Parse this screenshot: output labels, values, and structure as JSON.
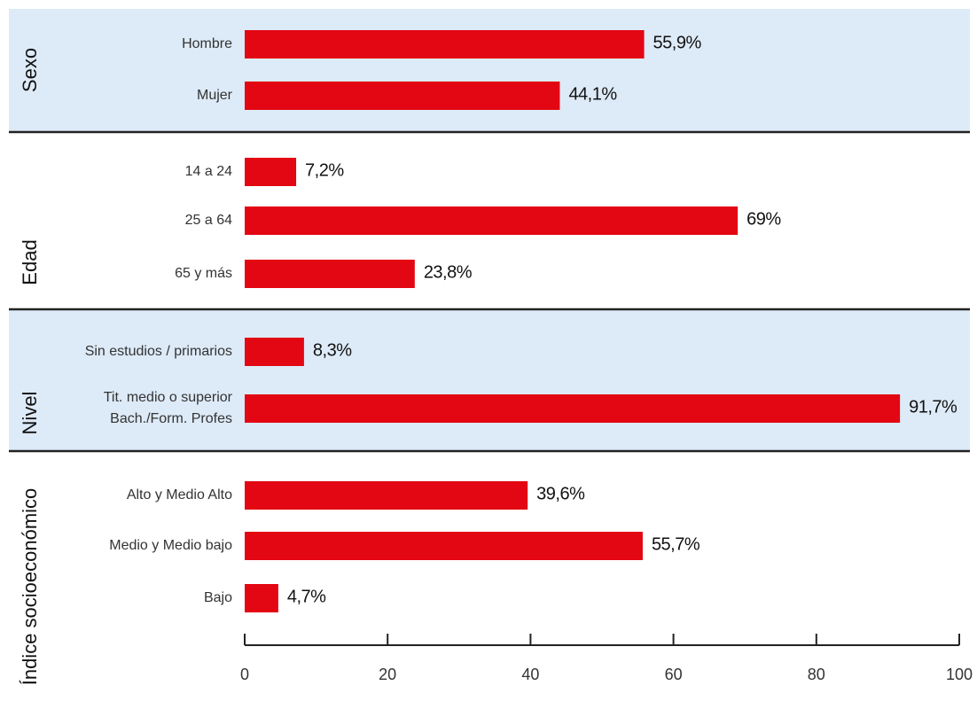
{
  "chart_data": {
    "type": "bar",
    "orientation": "horizontal",
    "xlim": [
      0,
      100
    ],
    "xticks": [
      "0",
      "20",
      "40",
      "60",
      "80",
      "100"
    ],
    "groups": [
      {
        "label": "Sexo",
        "shaded": true,
        "items": [
          {
            "label": [
              "Hombre"
            ],
            "value": 55.9,
            "value_label": "55,9%"
          },
          {
            "label": [
              "Mujer"
            ],
            "value": 44.1,
            "value_label": "44,1%"
          }
        ]
      },
      {
        "label": "Edad",
        "shaded": false,
        "items": [
          {
            "label": [
              "14 a 24"
            ],
            "value": 7.2,
            "value_label": "7,2%"
          },
          {
            "label": [
              "25 a 64"
            ],
            "value": 69,
            "value_label": "69%"
          },
          {
            "label": [
              "65 y más"
            ],
            "value": 23.8,
            "value_label": "23,8%"
          }
        ]
      },
      {
        "label": "Nivel",
        "shaded": true,
        "items": [
          {
            "label": [
              "Sin estudios / primarios"
            ],
            "value": 8.3,
            "value_label": "8,3%"
          },
          {
            "label": [
              "Tit. medio o superior",
              "Bach./Form. Profes"
            ],
            "value": 91.7,
            "value_label": "91,7%"
          }
        ]
      },
      {
        "label": "Índice socioeconómico",
        "shaded": false,
        "items": [
          {
            "label": [
              "Alto y Medio Alto"
            ],
            "value": 39.6,
            "value_label": "39,6%"
          },
          {
            "label": [
              "Medio y Medio bajo"
            ],
            "value": 55.7,
            "value_label": "55,7%"
          },
          {
            "label": [
              "Bajo"
            ],
            "value": 4.7,
            "value_label": "4,7%"
          }
        ]
      }
    ],
    "colors": {
      "bar": "#e30613",
      "band": "#ddeaf7",
      "separator": "#222222",
      "axis": "#222222"
    }
  }
}
